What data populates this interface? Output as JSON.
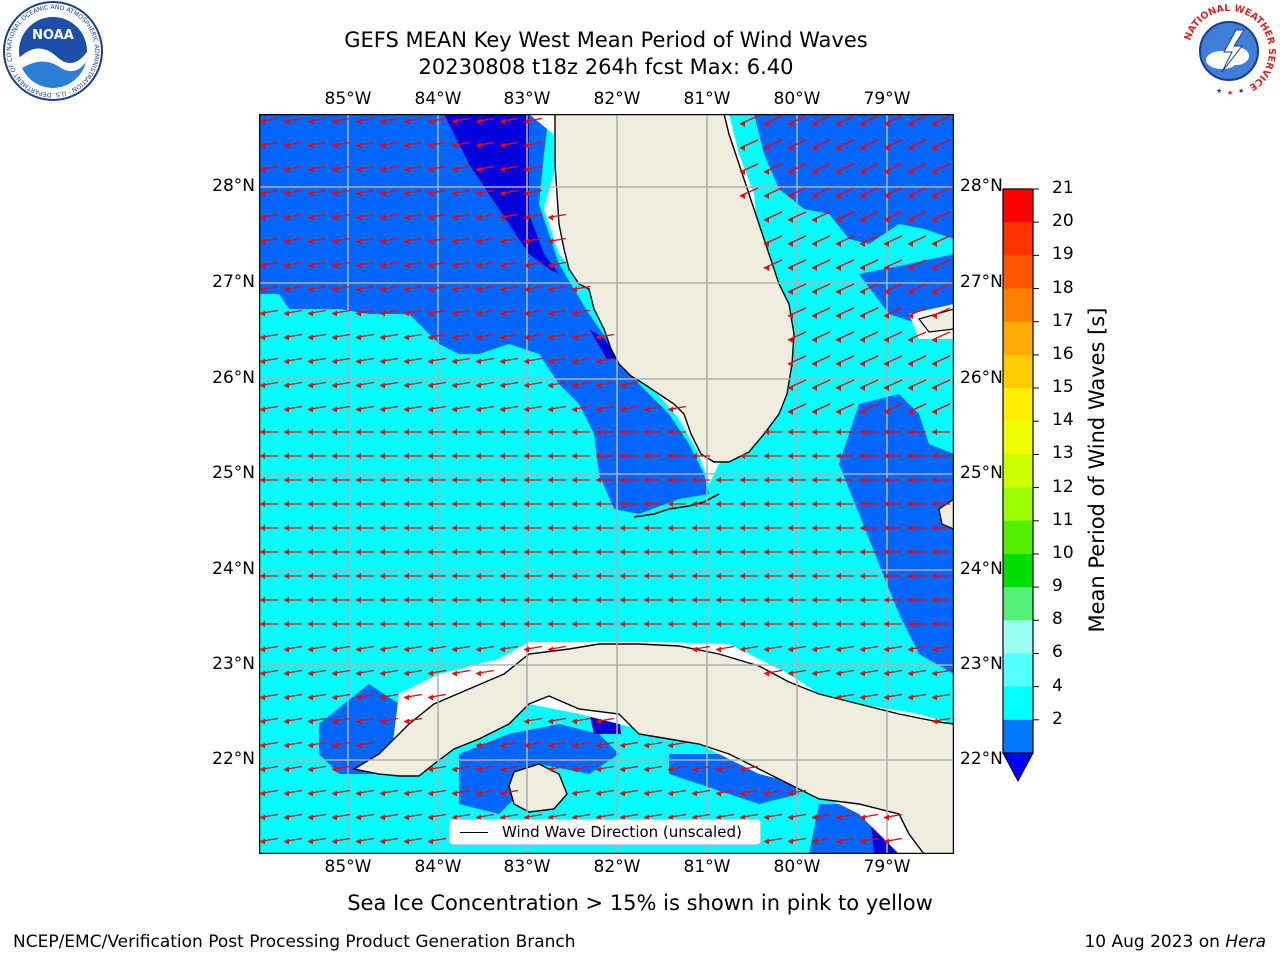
{
  "header": {
    "title_line1": "GEFS MEAN Key West Mean Period of Wind Waves",
    "title_line2": "20230808 t18z 264h fcst   Max: 6.40"
  },
  "map": {
    "lon_ticks": [
      "85°W",
      "84°W",
      "83°W",
      "82°W",
      "81°W",
      "80°W",
      "79°W"
    ],
    "lat_ticks": [
      "28°N",
      "27°N",
      "26°N",
      "25°N",
      "24°N",
      "23°N",
      "22°N"
    ],
    "colors": {
      "ocean_band_2_4": "#0066ff",
      "ocean_band_4_6": "#00ffff",
      "land": "#efedde",
      "grid": "#b0b0b0",
      "arrow": "#ff0000"
    }
  },
  "legend": {
    "label": "Wind Wave Direction (unscaled)"
  },
  "colorbar": {
    "title": "Mean Period of Wind Waves [s]",
    "labels": [
      "21",
      "20",
      "19",
      "18",
      "17",
      "16",
      "15",
      "14",
      "13",
      "12",
      "11",
      "10",
      "9",
      "8",
      "6",
      "4",
      "2"
    ],
    "colors": [
      "#ff0000",
      "#ff3300",
      "#ff5500",
      "#ff8000",
      "#ffaa00",
      "#ffcc00",
      "#ffee00",
      "#eeff00",
      "#ccff00",
      "#99ff00",
      "#55ee00",
      "#00dd00",
      "#55ee77",
      "#99ffee",
      "#55ffff",
      "#00ffff",
      "#0077ff"
    ],
    "under_color": "#0000ff"
  },
  "caption": "Sea Ice Concentration > 15% is shown in pink to yellow",
  "footer": {
    "left": "NCEP/EMC/Verification Post Processing Product Generation Branch",
    "date": "10 Aug 2023 on",
    "machine": "Hera"
  },
  "logos": {
    "noaa_text": "NOAA",
    "noaa_ring": "NATIONAL OCEANIC AND ATMOSPHERIC ADMINISTRATION · U.S. DEPARTMENT OF COMMERCE",
    "nws_ring": "NATIONAL WEATHER SERVICE"
  }
}
